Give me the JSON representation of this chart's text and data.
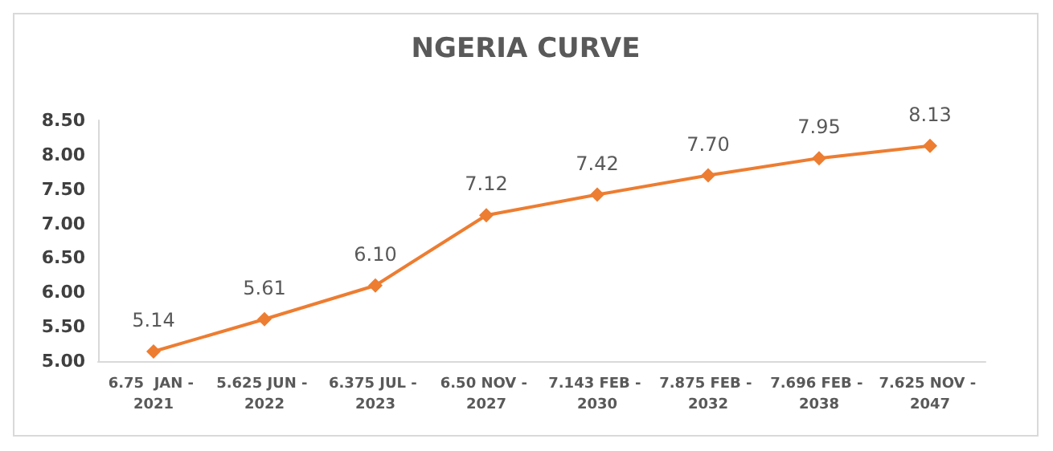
{
  "chart_data": {
    "type": "line",
    "title": "NGERIA CURVE",
    "categories": [
      "6.75  JAN - 2021",
      "5.625 JUN - 2022",
      "6.375 JUL - 2023",
      "6.50 NOV - 2027",
      "7.143 FEB - 2030",
      "7.875 FEB - 2032",
      "7.696 FEB - 2038",
      "7.625 NOV - 2047"
    ],
    "series": [
      {
        "color": "#ed7d31",
        "values": [
          5.14,
          5.61,
          6.1,
          7.12,
          7.42,
          7.7,
          7.95,
          8.13
        ],
        "value_labels": [
          "5.14",
          "5.61",
          "6.10",
          "7.12",
          "7.42",
          "7.70",
          "7.95",
          "8.13"
        ]
      }
    ],
    "ylim": [
      5,
      8.5
    ],
    "yticks": [
      {
        "value": 5,
        "label": "5.00"
      },
      {
        "value": 5.5,
        "label": "5.50"
      },
      {
        "value": 6,
        "label": "6.00"
      },
      {
        "value": 6.5,
        "label": "6.50"
      },
      {
        "value": 7,
        "label": "7.00"
      },
      {
        "value": 7.5,
        "label": "7.50"
      },
      {
        "value": 8,
        "label": "8.00"
      },
      {
        "value": 8.5,
        "label": "8.50"
      }
    ],
    "grid": false,
    "marker": "diamond",
    "line_style": "solid"
  }
}
